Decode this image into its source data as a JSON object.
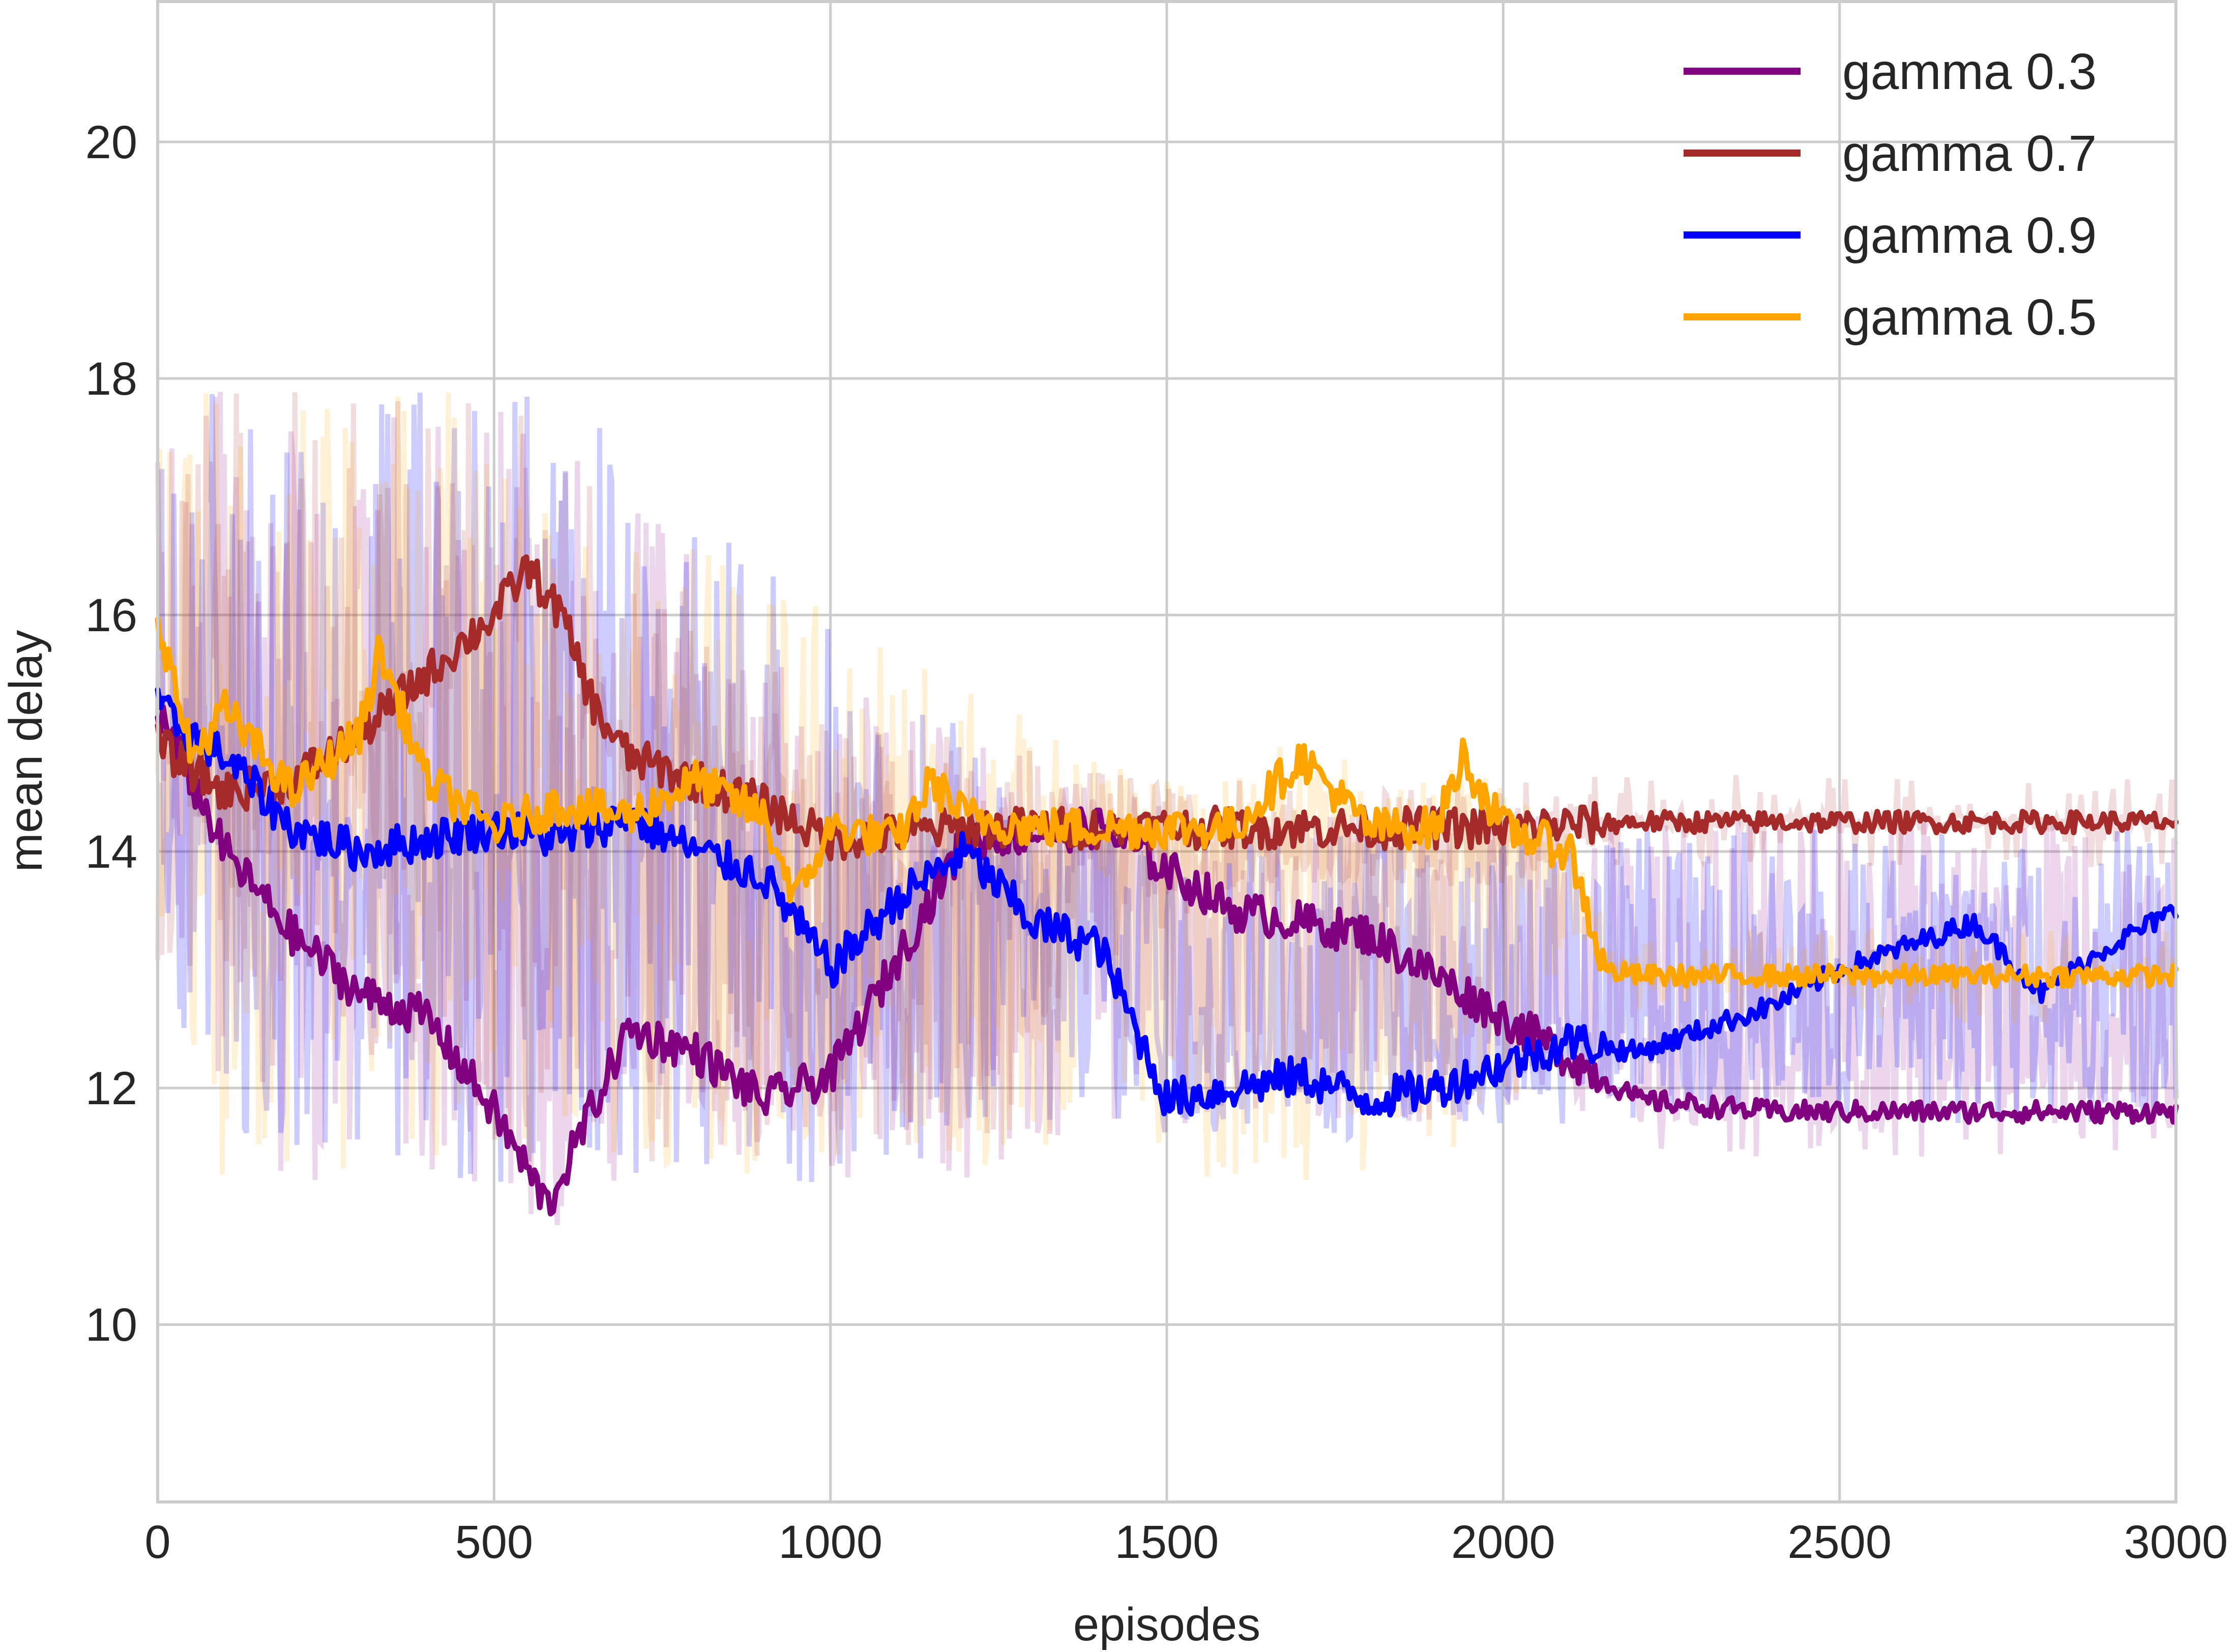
{
  "chart_data": {
    "type": "line",
    "title": "",
    "xlabel": "episodes",
    "ylabel": "mean delay",
    "xlim": [
      0,
      3000
    ],
    "ylim": [
      8.5,
      21.2
    ],
    "x_ticks": [
      0,
      500,
      1000,
      1500,
      2000,
      2500,
      3000
    ],
    "x_tick_labels": [
      "0",
      "500",
      "1000",
      "1500",
      "2000",
      "2500",
      "3000"
    ],
    "y_ticks": [
      10,
      12,
      14,
      16,
      18,
      20
    ],
    "y_tick_labels": [
      "10",
      "12",
      "14",
      "16",
      "18",
      "20"
    ],
    "grid": true,
    "legend_position": "top-right",
    "series": [
      {
        "name": "gamma 0.3",
        "color": "#800080",
        "x": [
          0,
          100,
          200,
          300,
          400,
          500,
          580,
          700,
          800,
          900,
          1000,
          1200,
          1400,
          1600,
          1800,
          2000,
          2200,
          2400,
          2600,
          2800,
          3000
        ],
        "smoothed": [
          15.2,
          14.0,
          13.3,
          12.8,
          12.6,
          11.8,
          11.0,
          12.5,
          12.3,
          11.9,
          12.1,
          14.1,
          14.2,
          13.5,
          13.3,
          12.6,
          11.9,
          11.8,
          11.8,
          11.8,
          11.8
        ],
        "raw_low": [
          12.9,
          11.7,
          11.2,
          11.2,
          11.2,
          11.2,
          11.2,
          11.2,
          11.2,
          11.2,
          11.2,
          11.2,
          11.7,
          11.7,
          11.7,
          11.7,
          11.7,
          11.7,
          11.7,
          11.7,
          11.7
        ],
        "raw_high": [
          17.9,
          17.9,
          17.9,
          17.9,
          17.9,
          17.9,
          17.6,
          17.0,
          16.5,
          16.0,
          15.5,
          15.0,
          14.6,
          14.3,
          14.3,
          14.3,
          14.3,
          14.3,
          14.3,
          14.3,
          14.3
        ],
        "raw_alpha": 0.16
      },
      {
        "name": "gamma 0.7",
        "color": "#a52a2a",
        "x": [
          0,
          100,
          200,
          300,
          400,
          500,
          550,
          600,
          650,
          700,
          800,
          900,
          1000,
          1200,
          1400,
          1600,
          1800,
          2000,
          2200,
          2400,
          2600,
          2800,
          3000
        ],
        "smoothed": [
          14.9,
          14.5,
          14.6,
          15.0,
          15.5,
          16.0,
          16.4,
          16.0,
          15.2,
          14.8,
          14.6,
          14.4,
          14.1,
          14.2,
          14.2,
          14.2,
          14.2,
          14.2,
          14.25,
          14.25,
          14.25,
          14.25,
          14.25
        ],
        "raw_low": [
          12.9,
          12.9,
          12.9,
          12.9,
          12.9,
          11.2,
          11.2,
          11.2,
          11.2,
          11.2,
          11.2,
          11.2,
          11.2,
          11.2,
          12.9,
          13.7,
          13.7,
          13.7,
          14.2,
          14.2,
          14.2,
          14.2,
          14.2
        ],
        "raw_high": [
          17.9,
          17.9,
          17.9,
          17.9,
          17.9,
          17.9,
          17.9,
          17.6,
          17.0,
          16.5,
          16.0,
          15.6,
          15.3,
          15.0,
          14.7,
          14.4,
          14.3,
          14.3,
          14.3,
          14.3,
          14.3,
          14.3,
          14.3
        ],
        "raw_alpha": 0.16
      },
      {
        "name": "gamma 0.9",
        "color": "#0000ff",
        "x": [
          0,
          100,
          200,
          300,
          400,
          500,
          600,
          700,
          800,
          900,
          1000,
          1100,
          1200,
          1300,
          1400,
          1500,
          1600,
          1700,
          1800,
          1900,
          2000,
          2100,
          2200,
          2300,
          2400,
          2500,
          2600,
          2700,
          2800,
          2900,
          3000
        ],
        "smoothed": [
          15.2,
          14.8,
          14.2,
          14.0,
          14.1,
          14.2,
          14.1,
          14.3,
          14.0,
          13.8,
          13.0,
          13.6,
          14.0,
          13.4,
          13.2,
          11.9,
          12.0,
          12.1,
          11.9,
          12.0,
          12.2,
          12.4,
          12.3,
          12.5,
          12.7,
          13.0,
          13.2,
          13.4,
          12.8,
          13.2,
          13.5
        ],
        "raw_low": [
          12.9,
          11.7,
          11.2,
          11.2,
          11.2,
          11.2,
          11.2,
          11.2,
          11.2,
          11.2,
          11.2,
          11.2,
          11.7,
          11.7,
          11.7,
          11.7,
          11.7,
          11.7,
          11.7,
          11.7,
          11.7,
          11.7,
          11.7,
          11.7,
          11.7,
          11.7,
          11.7,
          11.7,
          11.7,
          11.7,
          11.7
        ],
        "raw_high": [
          17.9,
          17.9,
          17.9,
          17.9,
          17.9,
          17.9,
          17.9,
          17.5,
          17.0,
          16.5,
          16.0,
          15.5,
          15.0,
          14.6,
          14.3,
          14.2,
          14.2,
          14.2,
          14.2,
          14.2,
          14.2,
          14.2,
          14.2,
          14.2,
          14.2,
          14.2,
          14.2,
          14.2,
          14.2,
          14.2,
          14.2
        ],
        "raw_alpha": 0.2
      },
      {
        "name": "gamma 0.5",
        "color": "#ffa500",
        "x": [
          0,
          50,
          100,
          200,
          300,
          330,
          400,
          500,
          600,
          700,
          800,
          900,
          950,
          1000,
          1100,
          1150,
          1200,
          1300,
          1400,
          1500,
          1600,
          1700,
          1800,
          1900,
          1940,
          2000,
          2100,
          2150,
          2200,
          2300,
          2400,
          2500,
          2600,
          2700,
          2800,
          2900,
          3000
        ],
        "smoothed": [
          16.0,
          14.8,
          15.2,
          14.5,
          15.0,
          15.7,
          14.6,
          14.2,
          14.4,
          14.3,
          14.6,
          14.3,
          13.6,
          14.2,
          14.1,
          14.6,
          14.3,
          14.2,
          14.2,
          14.2,
          14.2,
          14.8,
          14.2,
          14.2,
          14.8,
          14.2,
          14.0,
          13.0,
          12.95,
          12.95,
          12.95,
          12.95,
          12.95,
          12.95,
          12.95,
          12.95,
          12.95
        ],
        "raw_low": [
          12.9,
          11.7,
          11.2,
          11.2,
          11.2,
          11.2,
          11.2,
          11.2,
          11.2,
          11.2,
          11.2,
          11.2,
          11.2,
          11.2,
          11.2,
          11.2,
          11.2,
          11.2,
          11.7,
          11.2,
          11.2,
          11.2,
          11.2,
          11.2,
          11.2,
          11.7,
          12.9,
          12.9,
          12.9,
          12.9,
          12.9,
          12.9,
          12.9,
          12.9,
          12.9,
          12.9,
          12.9
        ],
        "raw_high": [
          17.9,
          17.9,
          17.9,
          17.9,
          17.9,
          17.9,
          17.9,
          17.9,
          17.6,
          17.0,
          16.6,
          16.3,
          16.2,
          16.0,
          15.7,
          15.6,
          15.5,
          15.1,
          14.8,
          14.6,
          14.6,
          14.6,
          14.6,
          14.6,
          14.6,
          14.6,
          14.3,
          13.2,
          13.0,
          13.0,
          13.0,
          13.0,
          13.0,
          13.0,
          13.0,
          13.0,
          13.0
        ],
        "raw_alpha": 0.16
      }
    ]
  }
}
